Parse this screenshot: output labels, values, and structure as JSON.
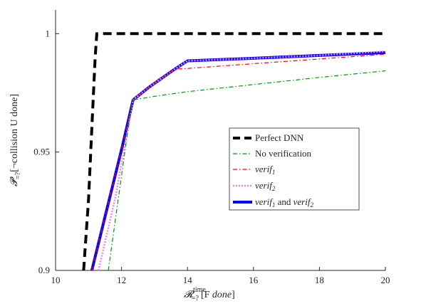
{
  "chart_data": {
    "type": "line",
    "xlabel": "𝓡=?time[F done]",
    "ylabel": "𝓟=?[¬collision U done]",
    "xlim": [
      10,
      20
    ],
    "ylim": [
      0.9,
      1.01
    ],
    "xticks": [
      "10",
      "12",
      "14",
      "16",
      "18",
      "20"
    ],
    "yticks": [
      "0.9",
      "0.95",
      "1"
    ],
    "legend_position": "center-right",
    "grid": false,
    "series": [
      {
        "name": "Perfect DNN",
        "color": "#000000",
        "style": "dashed",
        "x": [
          10.85,
          11.0,
          11.1,
          11.2,
          11.25,
          20.0
        ],
        "y": [
          0.9,
          0.93,
          0.96,
          0.99,
          1.0,
          1.0
        ]
      },
      {
        "name": "No verification",
        "color": "#009900",
        "style": "dashdot",
        "x": [
          11.6,
          11.8,
          12.0,
          12.2,
          12.35,
          13.0,
          14.0,
          16.0,
          18.0,
          20.0
        ],
        "y": [
          0.9,
          0.92,
          0.94,
          0.96,
          0.972,
          0.9735,
          0.9755,
          0.9785,
          0.9815,
          0.9843
        ]
      },
      {
        "name": "verif1",
        "color": "#ff0000",
        "style": "dashdot",
        "x": [
          11.1,
          11.4,
          11.7,
          12.0,
          12.2,
          12.35,
          12.8,
          13.3,
          13.6,
          14.0,
          16.0,
          18.0,
          20.0
        ],
        "y": [
          0.9,
          0.917,
          0.934,
          0.951,
          0.963,
          0.972,
          0.977,
          0.982,
          0.985,
          0.9853,
          0.9873,
          0.9893,
          0.9913
        ]
      },
      {
        "name": "verif2",
        "color": "#ee82ee",
        "style": "dotted",
        "x": [
          11.3,
          11.5,
          11.8,
          12.0,
          12.2,
          12.35,
          12.8,
          13.3,
          13.7,
          14.0,
          16.0,
          18.0,
          20.0
        ],
        "y": [
          0.9,
          0.912,
          0.93,
          0.945,
          0.96,
          0.972,
          0.977,
          0.982,
          0.9858,
          0.9885,
          0.9896,
          0.9908,
          0.9925
        ]
      },
      {
        "name": "verif1 and verif2",
        "color": "#0000ff",
        "style": "solid",
        "x": [
          11.1,
          11.4,
          11.7,
          12.0,
          12.2,
          12.35,
          12.8,
          13.3,
          13.7,
          14.0,
          16.0,
          18.0,
          20.0
        ],
        "y": [
          0.9,
          0.917,
          0.934,
          0.951,
          0.963,
          0.972,
          0.977,
          0.982,
          0.9858,
          0.9885,
          0.9896,
          0.9908,
          0.992
        ]
      }
    ]
  },
  "legend": {
    "perfect": "Perfect DNN",
    "nover": "No verification",
    "verif1": "verif",
    "verif1_sub": "1",
    "verif2": "verif",
    "verif2_sub": "2",
    "both_a": "verif",
    "both_a_sub": "1",
    "both_and": " and ",
    "both_b": "verif",
    "both_b_sub": "2"
  },
  "labels": {
    "x_main": "𝓡",
    "x_sub": "=?",
    "x_sup": "time",
    "x_rest": "[F ",
    "x_done": "done",
    "x_end": "]",
    "y_main": "𝓟",
    "y_sub": "=?",
    "y_rest": "[¬collision U done]"
  }
}
